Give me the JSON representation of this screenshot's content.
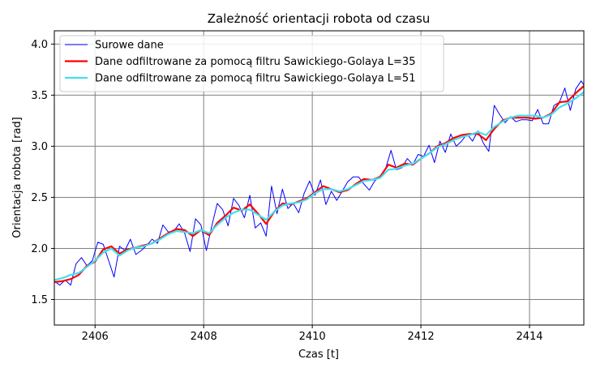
{
  "chart_data": {
    "type": "line",
    "title": "Zależność orientacji robota od czasu",
    "xlabel": "Czas [t]",
    "ylabel": "Orientacja robota [rad]",
    "xlim": [
      2405.25,
      2415.0
    ],
    "ylim": [
      1.25,
      4.13
    ],
    "xticks": [
      2406,
      2408,
      2410,
      2412,
      2414
    ],
    "yticks": [
      1.5,
      2.0,
      2.5,
      3.0,
      3.5,
      4.0
    ],
    "xtick_labels": [
      "2406",
      "2408",
      "2410",
      "2412",
      "2414"
    ],
    "ytick_labels": [
      "1.5",
      "2.0",
      "2.5",
      "3.0",
      "3.5",
      "4.0"
    ],
    "grid": true,
    "legend_position": "top-left",
    "series": [
      {
        "name": "Surowe dane",
        "color": "#0000ff",
        "x": [
          2405.25,
          2405.35,
          2405.45,
          2405.55,
          2405.65,
          2405.75,
          2405.85,
          2405.95,
          2406.05,
          2406.15,
          2406.25,
          2406.35,
          2406.45,
          2406.55,
          2406.65,
          2406.75,
          2406.85,
          2406.95,
          2407.05,
          2407.15,
          2407.25,
          2407.35,
          2407.45,
          2407.55,
          2407.65,
          2407.75,
          2407.85,
          2407.95,
          2408.05,
          2408.15,
          2408.25,
          2408.35,
          2408.45,
          2408.55,
          2408.65,
          2408.75,
          2408.85,
          2408.95,
          2409.05,
          2409.15,
          2409.25,
          2409.35,
          2409.45,
          2409.55,
          2409.65,
          2409.75,
          2409.85,
          2409.95,
          2410.05,
          2410.15,
          2410.25,
          2410.35,
          2410.45,
          2410.55,
          2410.65,
          2410.75,
          2410.85,
          2410.95,
          2411.05,
          2411.15,
          2411.25,
          2411.35,
          2411.45,
          2411.55,
          2411.65,
          2411.75,
          2411.85,
          2411.95,
          2412.05,
          2412.15,
          2412.25,
          2412.35,
          2412.45,
          2412.55,
          2412.65,
          2412.75,
          2412.85,
          2412.95,
          2413.05,
          2413.15,
          2413.25,
          2413.35,
          2413.45,
          2413.55,
          2413.65,
          2413.75,
          2413.85,
          2413.95,
          2414.05,
          2414.15,
          2414.25,
          2414.35,
          2414.45,
          2414.55,
          2414.65,
          2414.75,
          2414.85,
          2414.95,
          2415.0
        ],
        "y": [
          1.68,
          1.64,
          1.69,
          1.64,
          1.85,
          1.91,
          1.83,
          1.88,
          2.06,
          2.04,
          1.88,
          1.72,
          2.02,
          1.98,
          2.09,
          1.94,
          1.98,
          2.03,
          2.09,
          2.05,
          2.23,
          2.16,
          2.17,
          2.24,
          2.15,
          1.97,
          2.29,
          2.23,
          1.98,
          2.22,
          2.44,
          2.38,
          2.22,
          2.49,
          2.42,
          2.3,
          2.52,
          2.2,
          2.25,
          2.12,
          2.61,
          2.34,
          2.58,
          2.39,
          2.44,
          2.35,
          2.54,
          2.66,
          2.52,
          2.67,
          2.43,
          2.56,
          2.47,
          2.56,
          2.65,
          2.7,
          2.7,
          2.63,
          2.57,
          2.66,
          2.71,
          2.78,
          2.96,
          2.77,
          2.79,
          2.88,
          2.82,
          2.92,
          2.9,
          3.01,
          2.84,
          3.05,
          2.94,
          3.12,
          3.0,
          3.05,
          3.12,
          3.05,
          3.15,
          3.03,
          2.95,
          3.4,
          3.31,
          3.23,
          3.29,
          3.24,
          3.26,
          3.26,
          3.25,
          3.36,
          3.22,
          3.22,
          3.4,
          3.43,
          3.57,
          3.35,
          3.56,
          3.64,
          3.6
        ]
      },
      {
        "name": "Dane odfiltrowane za pomocą filtru Sawickiego-Golaya L=35",
        "color": "#ff0000",
        "x": [
          2405.25,
          2405.4,
          2405.55,
          2405.7,
          2405.85,
          2406.0,
          2406.15,
          2406.3,
          2406.45,
          2406.6,
          2406.75,
          2406.9,
          2407.05,
          2407.2,
          2407.35,
          2407.5,
          2407.65,
          2407.8,
          2407.95,
          2408.1,
          2408.25,
          2408.4,
          2408.55,
          2408.7,
          2408.85,
          2409.0,
          2409.15,
          2409.3,
          2409.45,
          2409.6,
          2409.75,
          2409.9,
          2410.05,
          2410.2,
          2410.35,
          2410.5,
          2410.65,
          2410.8,
          2410.95,
          2411.1,
          2411.25,
          2411.4,
          2411.55,
          2411.7,
          2411.85,
          2412.0,
          2412.15,
          2412.3,
          2412.45,
          2412.6,
          2412.75,
          2412.9,
          2413.05,
          2413.2,
          2413.35,
          2413.5,
          2413.65,
          2413.8,
          2413.95,
          2414.1,
          2414.25,
          2414.4,
          2414.55,
          2414.7,
          2414.85,
          2415.0
        ],
        "y": [
          1.67,
          1.68,
          1.7,
          1.74,
          1.83,
          1.87,
          1.99,
          2.02,
          1.95,
          1.99,
          2.01,
          2.03,
          2.05,
          2.1,
          2.15,
          2.19,
          2.18,
          2.12,
          2.18,
          2.13,
          2.25,
          2.32,
          2.4,
          2.37,
          2.43,
          2.34,
          2.24,
          2.36,
          2.44,
          2.43,
          2.46,
          2.49,
          2.55,
          2.61,
          2.58,
          2.55,
          2.57,
          2.63,
          2.68,
          2.67,
          2.7,
          2.82,
          2.79,
          2.83,
          2.82,
          2.88,
          2.93,
          3.0,
          3.03,
          3.08,
          3.11,
          3.12,
          3.12,
          3.06,
          3.17,
          3.25,
          3.28,
          3.28,
          3.28,
          3.27,
          3.28,
          3.32,
          3.43,
          3.44,
          3.52,
          3.59
        ]
      },
      {
        "name": "Dane odfiltrowane za pomocą filtru Sawickiego-Golaya L=51",
        "color": "#40e0f0",
        "x": [
          2405.25,
          2405.4,
          2405.55,
          2405.7,
          2405.85,
          2406.0,
          2406.15,
          2406.3,
          2406.45,
          2406.6,
          2406.75,
          2406.9,
          2407.05,
          2407.2,
          2407.35,
          2407.5,
          2407.65,
          2407.8,
          2407.95,
          2408.1,
          2408.25,
          2408.4,
          2408.55,
          2408.7,
          2408.85,
          2409.0,
          2409.15,
          2409.3,
          2409.45,
          2409.6,
          2409.75,
          2409.9,
          2410.05,
          2410.2,
          2410.35,
          2410.5,
          2410.65,
          2410.8,
          2410.95,
          2411.1,
          2411.25,
          2411.4,
          2411.55,
          2411.7,
          2411.85,
          2412.0,
          2412.15,
          2412.3,
          2412.45,
          2412.6,
          2412.75,
          2412.9,
          2413.05,
          2413.2,
          2413.35,
          2413.5,
          2413.65,
          2413.8,
          2413.95,
          2414.1,
          2414.25,
          2414.4,
          2414.55,
          2414.7,
          2414.85,
          2415.0
        ],
        "y": [
          1.69,
          1.71,
          1.74,
          1.76,
          1.82,
          1.88,
          1.96,
          2.0,
          1.93,
          1.98,
          2.01,
          2.02,
          2.05,
          2.09,
          2.14,
          2.17,
          2.16,
          2.15,
          2.18,
          2.15,
          2.23,
          2.3,
          2.35,
          2.38,
          2.38,
          2.33,
          2.28,
          2.36,
          2.42,
          2.44,
          2.45,
          2.48,
          2.54,
          2.58,
          2.58,
          2.56,
          2.58,
          2.62,
          2.66,
          2.67,
          2.69,
          2.77,
          2.78,
          2.81,
          2.83,
          2.88,
          2.93,
          2.99,
          3.02,
          3.06,
          3.09,
          3.11,
          3.14,
          3.11,
          3.19,
          3.24,
          3.28,
          3.3,
          3.3,
          3.3,
          3.28,
          3.31,
          3.38,
          3.42,
          3.47,
          3.53
        ]
      }
    ]
  }
}
